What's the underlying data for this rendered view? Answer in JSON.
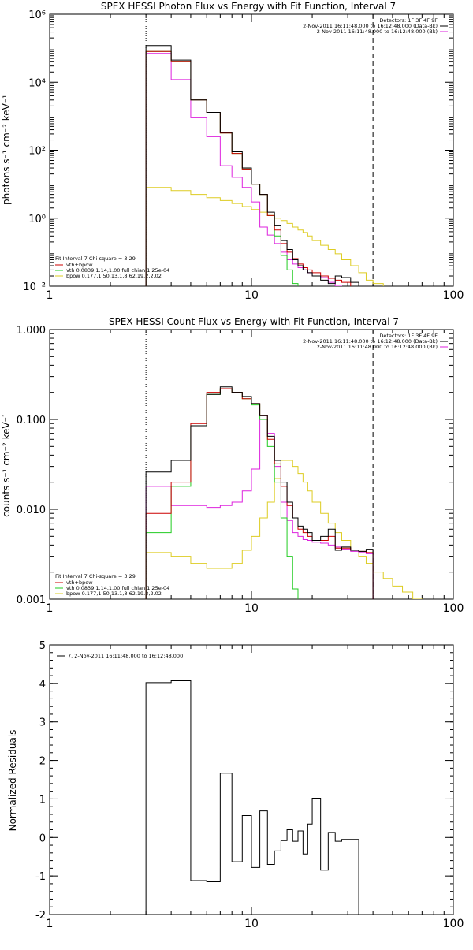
{
  "colors": {
    "data": "#000000",
    "total_fit": "#cc0000",
    "vth": "#22cc22",
    "bpow": "#ddcc22",
    "background": "#dd22dd"
  },
  "chart_data": [
    {
      "type": "line",
      "title": "SPEX HESSI Photon Flux vs Energy with Fit Function, Interval 7",
      "xlabel": "",
      "ylabel": "photons s⁻¹ cm⁻² keV⁻¹",
      "xscale": "log",
      "yscale": "log",
      "xlim": [
        1,
        100
      ],
      "ylim": [
        0.01,
        1000000
      ],
      "xticks": [
        1,
        10,
        100
      ],
      "xtick_labels": [
        "1",
        "10",
        "100"
      ],
      "yticks": [
        0.01,
        1,
        100,
        10000,
        1000000
      ],
      "ytick_labels": [
        "10⁻²",
        "10⁰",
        "10²",
        "10⁴",
        "10⁶"
      ],
      "vlines": [
        {
          "x": 3,
          "style": "dotted"
        },
        {
          "x": 40,
          "style": "dashed"
        }
      ],
      "legend_header": "Detectors: 1F 3F 4F 9F",
      "legend_lines": [
        "2-Nov-2011 16:11:48.000 to 16:12:48.000 (Data-Bk)",
        "2-Nov-2011 16:11:48.000 to 16:12:48.000 (Bk)"
      ],
      "fit_header": "Fit Interval  7   Chi-square = 3.29",
      "fit_labels": [
        "vth+bpow",
        "vth 0.0839,1.14,1.00  full chian 1.25e-04",
        "bpow 0.177,1.50,13.1,8.62,19.2,2.02"
      ],
      "edges": [
        3,
        4,
        5,
        6,
        7,
        8,
        9,
        10,
        11,
        12,
        13,
        14,
        15,
        16,
        17,
        18,
        19,
        20,
        22,
        24,
        26,
        28,
        31,
        34,
        37,
        40,
        45,
        50,
        56,
        63
      ],
      "series": [
        {
          "name": "2-Nov-2011 16:11:48.000 to 16:12:48.000 (Data-Bk)",
          "role": "data",
          "values": [
            120000,
            45000,
            3000,
            1300,
            330,
            90,
            30,
            10,
            5,
            1.5,
            0.6,
            0.22,
            0.12,
            0.06,
            0.04,
            0.03,
            0.025,
            0.02,
            0.015,
            0.012,
            0.02,
            0.018,
            0.013,
            0.01,
            0.009
          ]
        },
        {
          "name": "Background",
          "role": "background",
          "values": [
            70000,
            12000,
            900,
            250,
            35,
            16,
            8,
            3,
            0.55,
            0.32,
            0.18,
            0.1,
            0.06,
            0.045,
            0.035,
            0.03,
            0.025,
            0.02,
            0.018,
            0.013,
            0.01,
            0.009
          ]
        },
        {
          "name": "vth+bpow",
          "role": "total_fit",
          "values": [
            80000,
            40000,
            3000,
            1300,
            320,
            80,
            28,
            10,
            5,
            1.2,
            0.45,
            0.18,
            0.1,
            0.065,
            0.045,
            0.035,
            0.03,
            0.025,
            0.02,
            0.017,
            0.015,
            0.013
          ]
        },
        {
          "name": "vth 0.0839,1.14,1.00  full chian 1.25e-04",
          "role": "vth",
          "values": [
            80000,
            40000,
            3000,
            1300,
            320,
            80,
            28,
            10,
            5,
            1.2,
            0.3,
            0.08,
            0.03,
            0.012
          ]
        },
        {
          "name": "bpow 0.177,1.50,13.1,8.62,19.2,2.02",
          "role": "bpow",
          "values": [
            8,
            6.5,
            5,
            4,
            3.3,
            2.7,
            2.2,
            1.8,
            1.5,
            1.2,
            1.0,
            0.85,
            0.7,
            0.55,
            0.45,
            0.38,
            0.3,
            0.22,
            0.16,
            0.12,
            0.09,
            0.06,
            0.04,
            0.025,
            0.015,
            0.012,
            0.009,
            0.006,
            0.004
          ]
        }
      ]
    },
    {
      "type": "line",
      "title": "SPEX HESSI Count Flux vs Energy with Fit Function, Interval 7",
      "xlabel": "",
      "ylabel": "counts s⁻¹ cm⁻² keV⁻¹",
      "xscale": "log",
      "yscale": "log",
      "xlim": [
        1,
        100
      ],
      "ylim": [
        0.001,
        1.0
      ],
      "xticks": [
        1,
        10,
        100
      ],
      "xtick_labels": [
        "1",
        "10",
        "100"
      ],
      "yticks": [
        0.001,
        0.01,
        0.1,
        1.0
      ],
      "ytick_labels": [
        "0.001",
        "0.010",
        "0.100",
        "1.000"
      ],
      "vlines": [
        {
          "x": 3,
          "style": "dotted"
        },
        {
          "x": 40,
          "style": "dashed"
        }
      ],
      "legend_header": "Detectors: 1F 3F 4F 9F",
      "legend_lines": [
        "2-Nov-2011 16:11:48.000 to 16:12:48.000 (Data-Bk)",
        "2-Nov-2011 16:11:48.000 to 16:12:48.000 (Bk)"
      ],
      "fit_header": "Fit Interval  7   Chi-square = 3.29",
      "fit_labels": [
        "vth+bpow",
        "vth 0.0839,1.14,1.00  full chian 1.25e-04",
        "bpow 0.177,1.50,13.1,8.62,19.2,2.02"
      ],
      "edges": [
        3,
        4,
        5,
        6,
        7,
        8,
        9,
        10,
        11,
        12,
        13,
        14,
        15,
        16,
        17,
        18,
        19,
        20,
        22,
        24,
        26,
        28,
        31,
        34,
        37,
        40,
        45,
        50,
        56,
        63,
        70,
        80
      ],
      "series": [
        {
          "name": "2-Nov-2011 16:11:48.000 to 16:12:48.000 (Data-Bk)",
          "role": "data",
          "values": [
            0.026,
            0.035,
            0.085,
            0.19,
            0.23,
            0.2,
            0.18,
            0.15,
            0.11,
            0.065,
            0.035,
            0.02,
            0.012,
            0.008,
            0.0065,
            0.006,
            0.0055,
            0.0045,
            0.005,
            0.006,
            0.0035,
            0.0038,
            0.0035,
            0.0034,
            0.0036
          ]
        },
        {
          "name": "Background",
          "role": "background",
          "values": [
            0.018,
            0.011,
            0.011,
            0.0105,
            0.011,
            0.012,
            0.016,
            0.028,
            0.1,
            0.07,
            0.03,
            0.012,
            0.0075,
            0.0055,
            0.005,
            0.0046,
            0.0045,
            0.0043,
            0.0042,
            0.004,
            0.0038,
            0.0036,
            0.0034,
            0.0033,
            0.0032
          ]
        },
        {
          "name": "vth+bpow",
          "role": "total_fit",
          "values": [
            0.009,
            0.02,
            0.09,
            0.2,
            0.22,
            0.2,
            0.17,
            0.15,
            0.11,
            0.06,
            0.032,
            0.018,
            0.011,
            0.008,
            0.006,
            0.0055,
            0.005,
            0.0045,
            0.0045,
            0.005,
            0.0037,
            0.0037,
            0.0035,
            0.0034,
            0.0033
          ]
        },
        {
          "name": "vth 0.0839,1.14,1.00  full chian 1.25e-04",
          "role": "vth",
          "values": [
            0.0055,
            0.018,
            0.085,
            0.19,
            0.22,
            0.2,
            0.17,
            0.145,
            0.1,
            0.05,
            0.02,
            0.008,
            0.003,
            0.0013
          ]
        },
        {
          "name": "bpow 0.177,1.50,13.1,8.62,19.2,2.02",
          "role": "bpow",
          "values": [
            0.0033,
            0.003,
            0.0025,
            0.0022,
            0.0022,
            0.0025,
            0.0035,
            0.005,
            0.008,
            0.012,
            0.022,
            0.035,
            0.035,
            0.03,
            0.025,
            0.02,
            0.016,
            0.012,
            0.009,
            0.007,
            0.0055,
            0.0045,
            0.0035,
            0.003,
            0.0025,
            0.002,
            0.0017,
            0.0014,
            0.0012,
            0.001,
            0.0008
          ]
        }
      ]
    },
    {
      "type": "line",
      "title": "",
      "xlabel": "",
      "ylabel": "Normalized Residuals",
      "xscale": "log",
      "yscale": "linear",
      "xlim": [
        1,
        100
      ],
      "ylim": [
        -2,
        5
      ],
      "xticks": [
        1,
        10,
        100
      ],
      "xtick_labels": [
        "1",
        "10",
        "100"
      ],
      "yticks": [
        -2,
        -1,
        0,
        1,
        2,
        3,
        4,
        5
      ],
      "ytick_labels": [
        "-2",
        "-1",
        "0",
        "1",
        "2",
        "3",
        "4",
        "5"
      ],
      "legend_lines": [
        "7.  2-Nov-2011 16:11:48.000 to 16:12:48.000"
      ],
      "edges": [
        3,
        4,
        5,
        6,
        7,
        8,
        9,
        10,
        11,
        12,
        13,
        14,
        15,
        16,
        17,
        18,
        19,
        20,
        22,
        24,
        26,
        28,
        31,
        34,
        37,
        40
      ],
      "series": [
        {
          "name": "7.  2-Nov-2011 16:11:48.000 to 16:12:48.000",
          "role": "data",
          "values": [
            4.02,
            4.07,
            -1.12,
            -1.15,
            1.67,
            -0.63,
            0.57,
            -0.78,
            0.69,
            -0.7,
            -0.35,
            -0.08,
            0.2,
            -0.1,
            0.17,
            -0.43,
            0.35,
            1.02,
            -0.85,
            0.13,
            -0.1,
            -0.05,
            -0.05
          ]
        }
      ]
    }
  ]
}
